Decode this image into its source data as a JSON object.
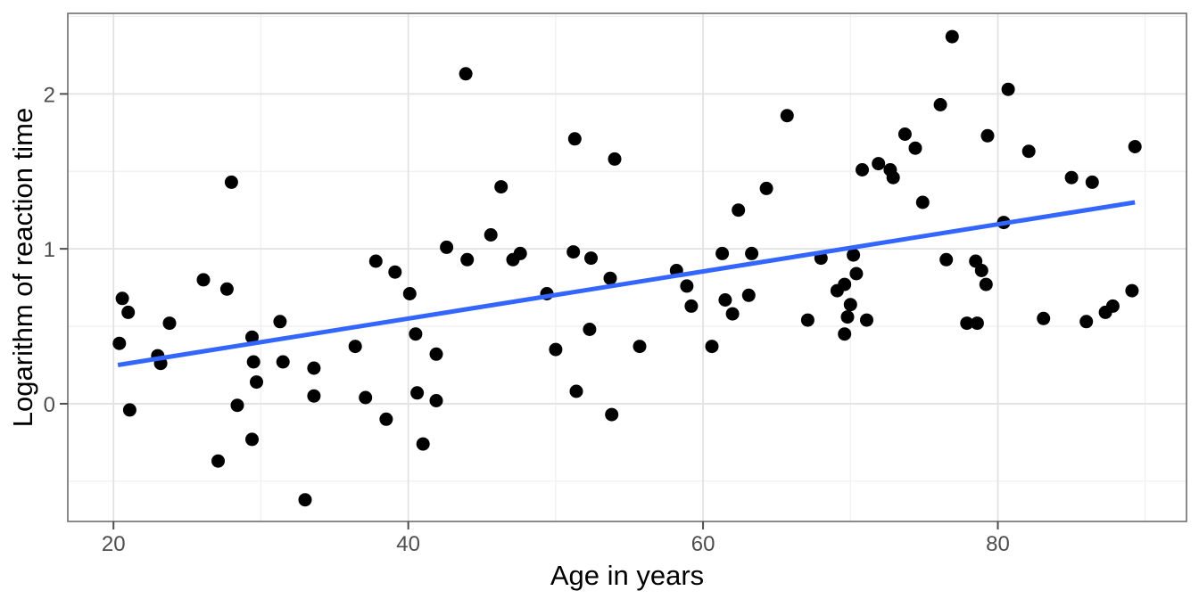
{
  "chart_data": {
    "type": "scatter",
    "title": "",
    "xlabel": "Age in years",
    "ylabel": "Logarithm of reaction time",
    "x_ticks": [
      20,
      40,
      60,
      80
    ],
    "y_ticks": [
      0,
      1,
      2
    ],
    "x_minor_gridlines": [
      30,
      50,
      70,
      90
    ],
    "y_minor_gridlines": [
      -0.5,
      0.5,
      1.5,
      2.5
    ],
    "xlim": [
      16.9,
      92.8
    ],
    "ylim": [
      -0.76,
      2.52
    ],
    "grid": "major-and-minor",
    "legend_position": "none",
    "series": [
      {
        "name": "observations",
        "marker": "filled-circle",
        "points": [
          [
            20.4,
            0.39
          ],
          [
            20.6,
            0.68
          ],
          [
            21.0,
            0.59
          ],
          [
            21.1,
            -0.04
          ],
          [
            23.0,
            0.31
          ],
          [
            23.2,
            0.26
          ],
          [
            23.8,
            0.52
          ],
          [
            26.1,
            0.8
          ],
          [
            27.1,
            -0.37
          ],
          [
            27.7,
            0.74
          ],
          [
            28.0,
            1.43
          ],
          [
            28.4,
            -0.01
          ],
          [
            29.4,
            0.43
          ],
          [
            29.4,
            -0.23
          ],
          [
            29.5,
            0.27
          ],
          [
            29.7,
            0.14
          ],
          [
            31.3,
            0.53
          ],
          [
            31.5,
            0.27
          ],
          [
            33.0,
            -0.62
          ],
          [
            33.6,
            0.23
          ],
          [
            33.6,
            0.05
          ],
          [
            36.4,
            0.37
          ],
          [
            37.1,
            0.04
          ],
          [
            37.8,
            0.92
          ],
          [
            38.5,
            -0.1
          ],
          [
            39.1,
            0.85
          ],
          [
            40.1,
            0.71
          ],
          [
            40.5,
            0.45
          ],
          [
            40.6,
            0.07
          ],
          [
            41.0,
            -0.26
          ],
          [
            41.9,
            0.32
          ],
          [
            41.9,
            0.02
          ],
          [
            42.6,
            1.01
          ],
          [
            43.9,
            2.13
          ],
          [
            44.0,
            0.93
          ],
          [
            45.6,
            1.09
          ],
          [
            46.3,
            1.4
          ],
          [
            47.1,
            0.93
          ],
          [
            47.6,
            0.97
          ],
          [
            49.4,
            0.71
          ],
          [
            50.0,
            0.35
          ],
          [
            51.2,
            0.98
          ],
          [
            51.3,
            1.71
          ],
          [
            51.4,
            0.08
          ],
          [
            52.3,
            0.48
          ],
          [
            52.4,
            0.94
          ],
          [
            53.7,
            0.81
          ],
          [
            53.8,
            -0.07
          ],
          [
            54.0,
            1.58
          ],
          [
            55.7,
            0.37
          ],
          [
            58.2,
            0.86
          ],
          [
            58.9,
            0.76
          ],
          [
            59.2,
            0.63
          ],
          [
            60.6,
            0.37
          ],
          [
            61.3,
            0.97
          ],
          [
            61.5,
            0.67
          ],
          [
            62.0,
            0.58
          ],
          [
            62.4,
            1.25
          ],
          [
            63.1,
            0.7
          ],
          [
            63.3,
            0.97
          ],
          [
            64.3,
            1.39
          ],
          [
            65.7,
            1.86
          ],
          [
            67.1,
            0.54
          ],
          [
            68.0,
            0.94
          ],
          [
            69.1,
            0.73
          ],
          [
            69.6,
            0.77
          ],
          [
            69.6,
            0.45
          ],
          [
            69.8,
            0.56
          ],
          [
            70.0,
            0.64
          ],
          [
            70.2,
            0.96
          ],
          [
            70.4,
            0.84
          ],
          [
            70.8,
            1.51
          ],
          [
            71.1,
            0.54
          ],
          [
            71.9,
            1.55
          ],
          [
            72.7,
            1.51
          ],
          [
            72.9,
            1.46
          ],
          [
            73.7,
            1.74
          ],
          [
            74.4,
            1.65
          ],
          [
            74.9,
            1.3
          ],
          [
            76.1,
            1.93
          ],
          [
            76.5,
            0.93
          ],
          [
            76.9,
            2.37
          ],
          [
            77.9,
            0.52
          ],
          [
            78.5,
            0.92
          ],
          [
            78.6,
            0.52
          ],
          [
            78.9,
            0.86
          ],
          [
            79.2,
            0.77
          ],
          [
            79.3,
            1.73
          ],
          [
            80.4,
            1.17
          ],
          [
            80.7,
            2.03
          ],
          [
            82.1,
            1.63
          ],
          [
            83.1,
            0.55
          ],
          [
            85.0,
            1.46
          ],
          [
            86.0,
            0.53
          ],
          [
            86.4,
            1.43
          ],
          [
            87.3,
            0.59
          ],
          [
            87.8,
            0.63
          ],
          [
            89.1,
            0.73
          ],
          [
            89.3,
            1.66
          ]
        ]
      }
    ],
    "trend_line": {
      "name": "linear-fit",
      "x1": 20.3,
      "y1": 0.25,
      "x2": 89.3,
      "y2": 1.3
    },
    "colors": {
      "point": "#000000",
      "trend_line": "#3366FF",
      "grid_major": "#E2E2E2",
      "grid_minor": "#EFEFEF",
      "panel_border": "#6E6E6E",
      "tick_mark": "#4D4D4D",
      "tick_label": "#4D4D4D",
      "axis_title": "#000000",
      "background": "#FFFFFF"
    }
  }
}
